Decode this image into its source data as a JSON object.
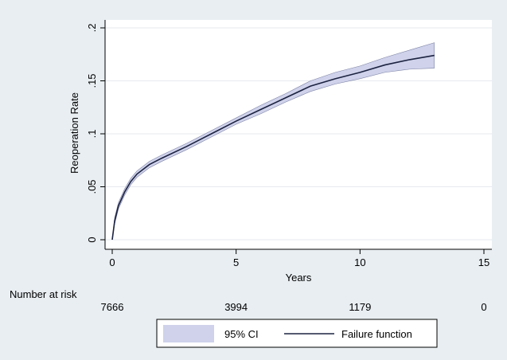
{
  "chart_data": {
    "type": "line",
    "xlabel": "Years",
    "ylabel": "Reoperation Rate",
    "xlim": [
      0,
      15
    ],
    "ylim": [
      0,
      0.2
    ],
    "x_ticks": [
      0,
      5,
      10,
      15
    ],
    "x_tick_labels": [
      "0",
      "5",
      "10",
      "15"
    ],
    "y_ticks": [
      0,
      0.05,
      0.1,
      0.15,
      0.2
    ],
    "y_tick_labels": [
      "0",
      ".05",
      ".1",
      ".15",
      ".2"
    ],
    "grid": "horizontal",
    "legend_position": "bottom",
    "series": [
      {
        "name": "Failure function",
        "color": "#1c2340",
        "x": [
          0,
          0.1,
          0.25,
          0.5,
          0.75,
          1,
          1.5,
          2,
          3,
          4,
          5,
          6,
          7,
          8,
          9,
          10,
          11,
          12,
          13
        ],
        "y": [
          0,
          0.018,
          0.032,
          0.045,
          0.055,
          0.062,
          0.071,
          0.077,
          0.088,
          0.1,
          0.112,
          0.123,
          0.134,
          0.145,
          0.152,
          0.158,
          0.165,
          0.17,
          0.174
        ]
      }
    ],
    "ci_band": {
      "name": "95% CI",
      "color": "#cfd2ea",
      "x": [
        0,
        0.1,
        0.25,
        0.5,
        0.75,
        1,
        1.5,
        2,
        3,
        4,
        5,
        6,
        7,
        8,
        9,
        10,
        11,
        12,
        13
      ],
      "lower": [
        0,
        0.015,
        0.029,
        0.042,
        0.052,
        0.059,
        0.068,
        0.074,
        0.085,
        0.097,
        0.109,
        0.119,
        0.13,
        0.14,
        0.147,
        0.152,
        0.158,
        0.161,
        0.162
      ],
      "upper": [
        0,
        0.021,
        0.035,
        0.048,
        0.058,
        0.065,
        0.074,
        0.08,
        0.091,
        0.103,
        0.115,
        0.127,
        0.138,
        0.15,
        0.158,
        0.164,
        0.172,
        0.179,
        0.186
      ]
    },
    "risk_table": {
      "label": "Number at risk",
      "times": [
        0,
        5,
        10,
        15
      ],
      "values": [
        "7666",
        "3994",
        "1179",
        "0"
      ]
    }
  }
}
